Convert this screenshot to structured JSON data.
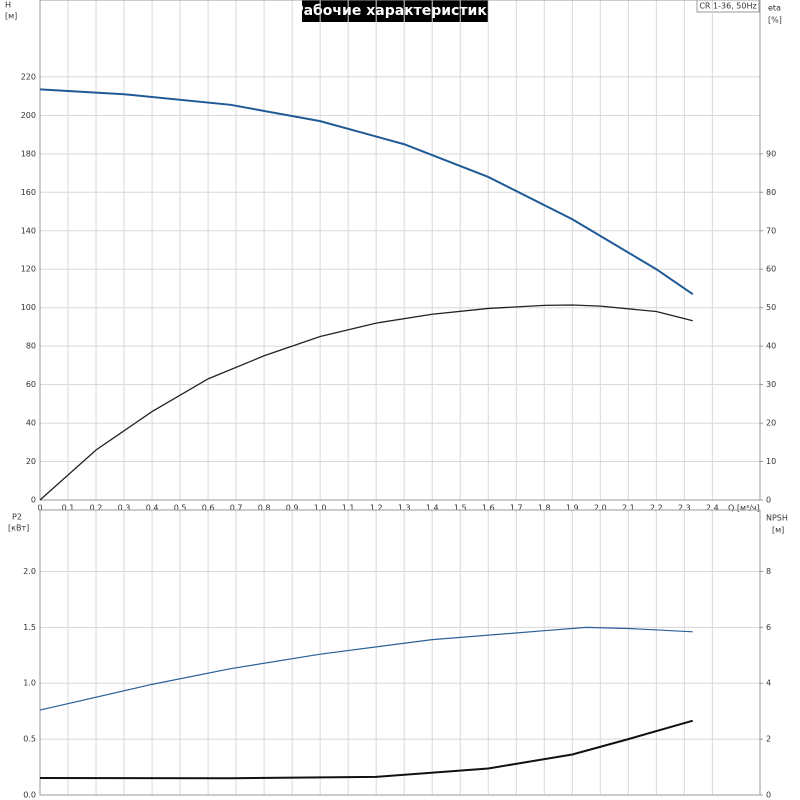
{
  "chart_data": [
    {
      "type": "line",
      "title": "Рабочие характеристики",
      "subtitle": "CR 1-36, 50Hz",
      "ylabel": "H",
      "yunit": "[м]",
      "y2label": "eta",
      "y2unit": "[%]",
      "xlabel": "Q [м³/ч]",
      "xlim": [
        0,
        2.57
      ],
      "ylim": [
        0,
        260
      ],
      "y2lim": [
        0,
        130
      ],
      "xticks": [
        0,
        {
          "value": 0.1,
          "label": "0,1"
        },
        {
          "value": 0.2,
          "label": "0,2"
        },
        {
          "value": 0.3,
          "label": "0,3"
        },
        {
          "value": 0.4,
          "label": "0,4"
        },
        {
          "value": 0.5,
          "label": "0,5"
        },
        {
          "value": 0.6,
          "label": "0,6"
        },
        {
          "value": 0.7,
          "label": "0,7"
        },
        {
          "value": 0.8,
          "label": "0,8"
        },
        {
          "value": 0.9,
          "label": "0,9"
        },
        {
          "value": 1.0,
          "label": "1,0"
        },
        {
          "value": 1.1,
          "label": "1,1"
        },
        {
          "value": 1.2,
          "label": "1,2"
        },
        {
          "value": 1.3,
          "label": "1,3"
        },
        {
          "value": 1.4,
          "label": "1,4"
        },
        {
          "value": 1.5,
          "label": "1,5"
        },
        {
          "value": 1.6,
          "label": "1,6"
        },
        {
          "value": 1.7,
          "label": "1,7"
        },
        {
          "value": 1.8,
          "label": "1,8"
        },
        {
          "value": 1.9,
          "label": "1,9"
        },
        {
          "value": 2.0,
          "label": "2,0"
        },
        {
          "value": 2.1,
          "label": "2,1"
        },
        {
          "value": 2.2,
          "label": "2,2"
        },
        {
          "value": 2.3,
          "label": "2,3"
        },
        {
          "value": 2.4,
          "label": "2,4"
        }
      ],
      "yticks": [
        0,
        20,
        40,
        60,
        80,
        100,
        120,
        140,
        160,
        180,
        200,
        220
      ],
      "y2ticks": [
        0,
        10,
        20,
        30,
        40,
        50,
        60,
        70,
        80,
        90
      ],
      "grid": true,
      "series": [
        {
          "name": "H",
          "color": "#1f5a96",
          "x": [
            0,
            0.3,
            0.68,
            1.0,
            1.3,
            1.6,
            1.9,
            2.2,
            2.33
          ],
          "values": [
            213.5,
            211,
            205.5,
            197,
            185,
            168,
            146,
            120,
            107
          ]
        },
        {
          "name": "eta",
          "color": "#222222",
          "axis": "y2",
          "x": [
            0,
            0.2,
            0.4,
            0.6,
            0.8,
            1.0,
            1.2,
            1.4,
            1.6,
            1.8,
            1.9,
            2.0,
            2.2,
            2.33
          ],
          "values": [
            0,
            13,
            23,
            31.5,
            37.5,
            42.5,
            46,
            48.3,
            49.8,
            50.6,
            50.7,
            50.4,
            49,
            46.6
          ]
        }
      ]
    },
    {
      "type": "line",
      "ylabel": "P2",
      "yunit": "[кВт]",
      "y2label": "NPSH",
      "y2unit": "[м]",
      "xlim": [
        0,
        2.57
      ],
      "ylim": [
        0,
        2.55
      ],
      "y2lim": [
        0,
        10.2
      ],
      "yticks": [
        {
          "value": 0,
          "label": "0.0"
        },
        0.5,
        {
          "value": 1,
          "label": "1.0"
        },
        1.5,
        {
          "value": 2,
          "label": "2.0"
        }
      ],
      "y2ticks": [
        0,
        2,
        4,
        6,
        8
      ],
      "grid": true,
      "series": [
        {
          "name": "P2",
          "color": "#2a5f98",
          "x": [
            0,
            0.4,
            0.68,
            1.0,
            1.4,
            1.8,
            1.95,
            2.1,
            2.33
          ],
          "values": [
            0.76,
            0.99,
            1.13,
            1.26,
            1.39,
            1.47,
            1.5,
            1.49,
            1.46
          ]
        },
        {
          "name": "NPSH",
          "color": "#111111",
          "axis": "y2",
          "x": [
            0,
            0.68,
            1.2,
            1.6,
            1.9,
            2.1,
            2.33
          ],
          "values": [
            0.61,
            0.6,
            0.65,
            0.95,
            1.45,
            2.0,
            2.66
          ]
        }
      ]
    }
  ]
}
